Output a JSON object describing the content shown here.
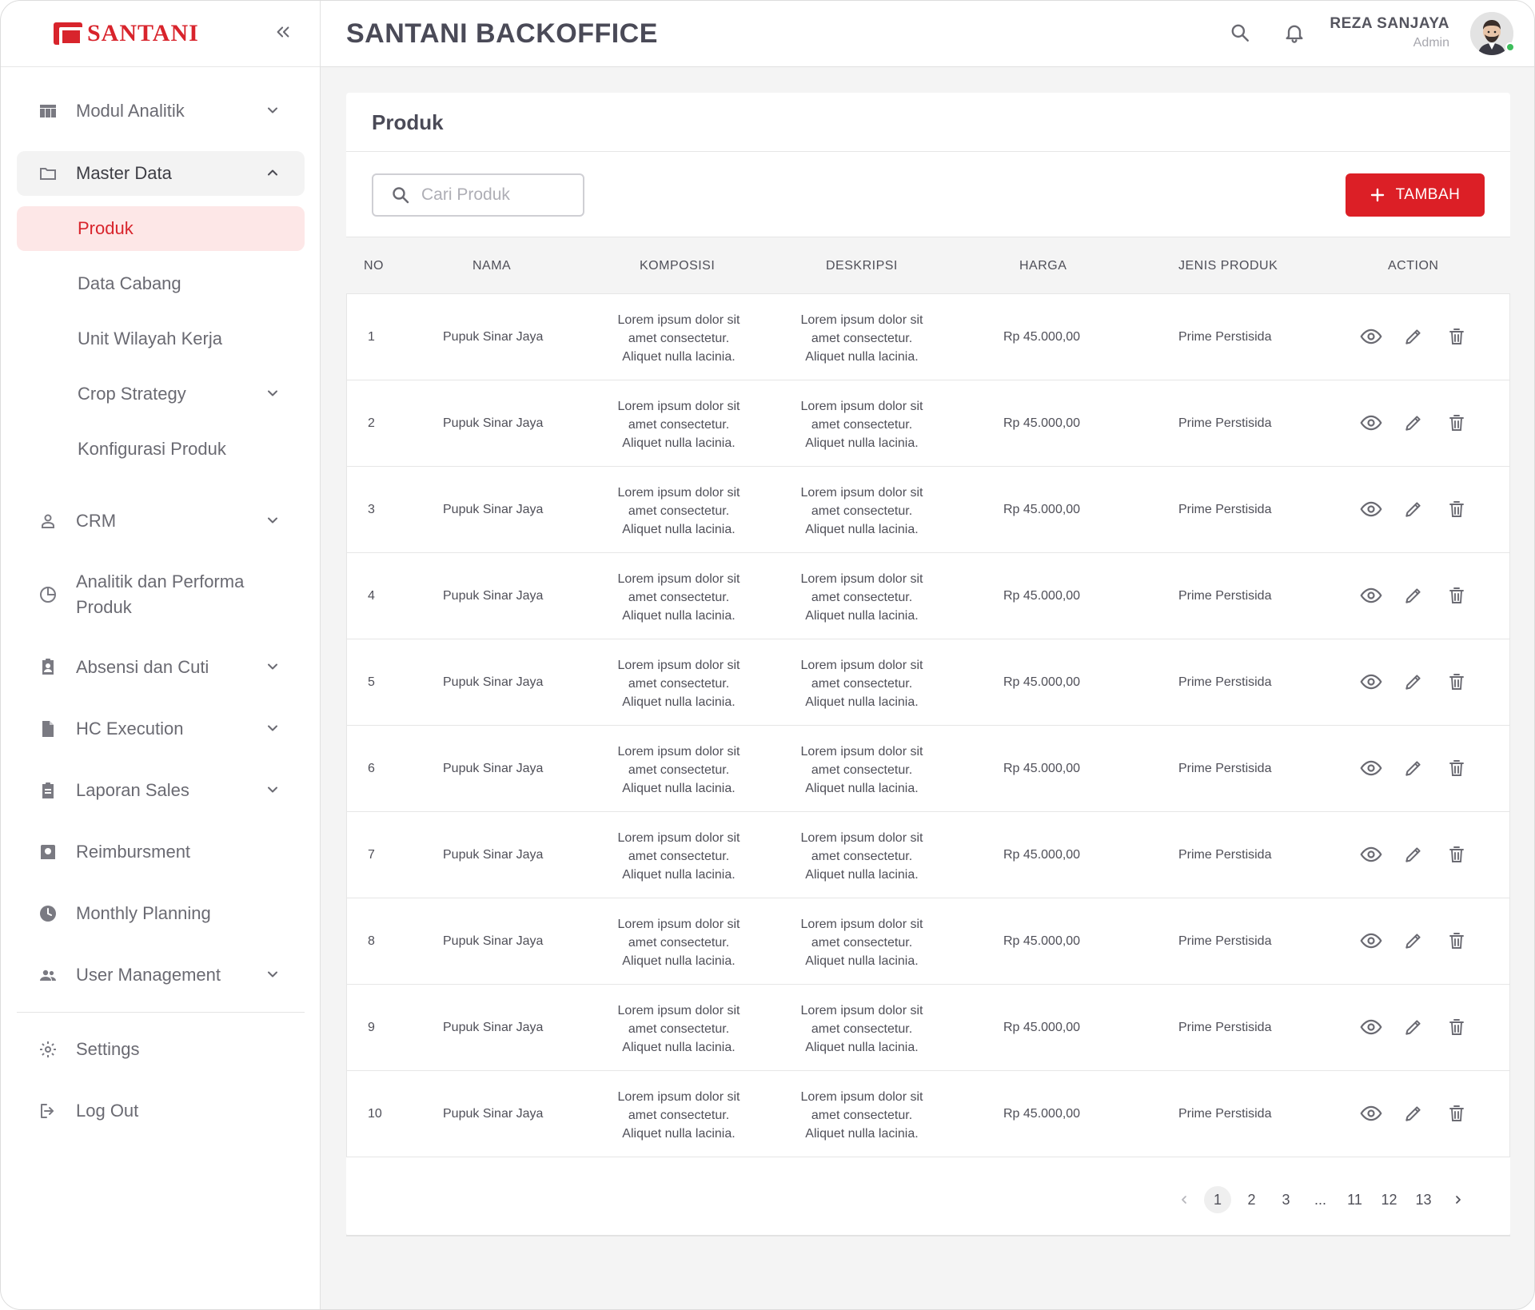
{
  "brand": {
    "logo_text": "SANTANI",
    "accent": "#d8242c"
  },
  "header": {
    "title": "SANTANI BACKOFFICE",
    "user_name": "REZA SANJAYA",
    "user_role": "Admin",
    "icons": [
      "search-icon",
      "bell-icon"
    ]
  },
  "sidebar": {
    "items": [
      {
        "label": "Modul Analitik",
        "icon": "table-icon",
        "expandable": true
      },
      {
        "label": "Master Data",
        "icon": "folder-icon",
        "expandable": true,
        "open": true
      },
      {
        "label": "CRM",
        "icon": "person-icon",
        "expandable": true
      },
      {
        "label": "Analitik dan Performa Produk",
        "icon": "pie-chart-icon",
        "expandable": false
      },
      {
        "label": "Absensi dan Cuti",
        "icon": "badge-icon",
        "expandable": true
      },
      {
        "label": "HC Execution",
        "icon": "document-icon",
        "expandable": true
      },
      {
        "label": "Laporan Sales",
        "icon": "clipboard-icon",
        "expandable": true
      },
      {
        "label": "Reimbursment",
        "icon": "receipt-icon",
        "expandable": false
      },
      {
        "label": "Monthly Planning",
        "icon": "clock-icon",
        "expandable": false
      },
      {
        "label": "User Management",
        "icon": "users-icon",
        "expandable": true
      }
    ],
    "sub_items": [
      {
        "label": "Produk",
        "active": true
      },
      {
        "label": "Data Cabang"
      },
      {
        "label": "Unit Wilayah Kerja"
      },
      {
        "label": "Crop Strategy",
        "expandable": true
      },
      {
        "label": "Konfigurasi Produk"
      }
    ],
    "footer": [
      {
        "label": "Settings",
        "icon": "gear-icon"
      },
      {
        "label": "Log Out",
        "icon": "logout-icon"
      }
    ]
  },
  "page": {
    "title": "Produk",
    "search_placeholder": "Cari Produk",
    "add_label": "TAMBAH"
  },
  "table": {
    "columns": [
      "NO",
      "NAMA",
      "KOMPOSISI",
      "DESKRIPSI",
      "HARGA",
      "JENIS PRODUK",
      "ACTION"
    ],
    "rows": [
      {
        "no": "1",
        "nama": "Pupuk Sinar Jaya",
        "komposisi": [
          "Lorem ipsum dolor sit",
          "amet consectetur.",
          "Aliquet nulla lacinia."
        ],
        "deskripsi": [
          "Lorem ipsum dolor sit",
          "amet consectetur.",
          "Aliquet nulla lacinia."
        ],
        "harga": "Rp 45.000,00",
        "jenis": "Prime Perstisida"
      },
      {
        "no": "2",
        "nama": "Pupuk Sinar Jaya",
        "komposisi": [
          "Lorem ipsum dolor sit",
          "amet consectetur.",
          "Aliquet nulla lacinia."
        ],
        "deskripsi": [
          "Lorem ipsum dolor sit",
          "amet consectetur.",
          "Aliquet nulla lacinia."
        ],
        "harga": "Rp 45.000,00",
        "jenis": "Prime Perstisida"
      },
      {
        "no": "3",
        "nama": "Pupuk Sinar Jaya",
        "komposisi": [
          "Lorem ipsum dolor sit",
          "amet consectetur.",
          "Aliquet nulla lacinia."
        ],
        "deskripsi": [
          "Lorem ipsum dolor sit",
          "amet consectetur.",
          "Aliquet nulla lacinia."
        ],
        "harga": "Rp 45.000,00",
        "jenis": "Prime Perstisida"
      },
      {
        "no": "4",
        "nama": "Pupuk Sinar Jaya",
        "komposisi": [
          "Lorem ipsum dolor sit",
          "amet consectetur.",
          "Aliquet nulla lacinia."
        ],
        "deskripsi": [
          "Lorem ipsum dolor sit",
          "amet consectetur.",
          "Aliquet nulla lacinia."
        ],
        "harga": "Rp 45.000,00",
        "jenis": "Prime Perstisida"
      },
      {
        "no": "5",
        "nama": "Pupuk Sinar Jaya",
        "komposisi": [
          "Lorem ipsum dolor sit",
          "amet consectetur.",
          "Aliquet nulla lacinia."
        ],
        "deskripsi": [
          "Lorem ipsum dolor sit",
          "amet consectetur.",
          "Aliquet nulla lacinia."
        ],
        "harga": "Rp 45.000,00",
        "jenis": "Prime Perstisida"
      },
      {
        "no": "6",
        "nama": "Pupuk Sinar Jaya",
        "komposisi": [
          "Lorem ipsum dolor sit",
          "amet consectetur.",
          "Aliquet nulla lacinia."
        ],
        "deskripsi": [
          "Lorem ipsum dolor sit",
          "amet consectetur.",
          "Aliquet nulla lacinia."
        ],
        "harga": "Rp 45.000,00",
        "jenis": "Prime Perstisida"
      },
      {
        "no": "7",
        "nama": "Pupuk Sinar Jaya",
        "komposisi": [
          "Lorem ipsum dolor sit",
          "amet consectetur.",
          "Aliquet nulla lacinia."
        ],
        "deskripsi": [
          "Lorem ipsum dolor sit",
          "amet consectetur.",
          "Aliquet nulla lacinia."
        ],
        "harga": "Rp 45.000,00",
        "jenis": "Prime Perstisida"
      },
      {
        "no": "8",
        "nama": "Pupuk Sinar Jaya",
        "komposisi": [
          "Lorem ipsum dolor sit",
          "amet consectetur.",
          "Aliquet nulla lacinia."
        ],
        "deskripsi": [
          "Lorem ipsum dolor sit",
          "amet consectetur.",
          "Aliquet nulla lacinia."
        ],
        "harga": "Rp 45.000,00",
        "jenis": "Prime Perstisida"
      },
      {
        "no": "9",
        "nama": "Pupuk Sinar Jaya",
        "komposisi": [
          "Lorem ipsum dolor sit",
          "amet consectetur.",
          "Aliquet nulla lacinia."
        ],
        "deskripsi": [
          "Lorem ipsum dolor sit",
          "amet consectetur.",
          "Aliquet nulla lacinia."
        ],
        "harga": "Rp 45.000,00",
        "jenis": "Prime Perstisida"
      },
      {
        "no": "10",
        "nama": "Pupuk Sinar Jaya",
        "komposisi": [
          "Lorem ipsum dolor sit",
          "amet consectetur.",
          "Aliquet nulla lacinia."
        ],
        "deskripsi": [
          "Lorem ipsum dolor sit",
          "amet consectetur.",
          "Aliquet nulla lacinia."
        ],
        "harga": "Rp 45.000,00",
        "jenis": "Prime Perstisida"
      }
    ],
    "row_actions": [
      "eye-icon",
      "pencil-icon",
      "trash-icon"
    ]
  },
  "pagination": {
    "pages": [
      "1",
      "2",
      "3",
      "...",
      "11",
      "12",
      "13"
    ],
    "current": "1"
  }
}
